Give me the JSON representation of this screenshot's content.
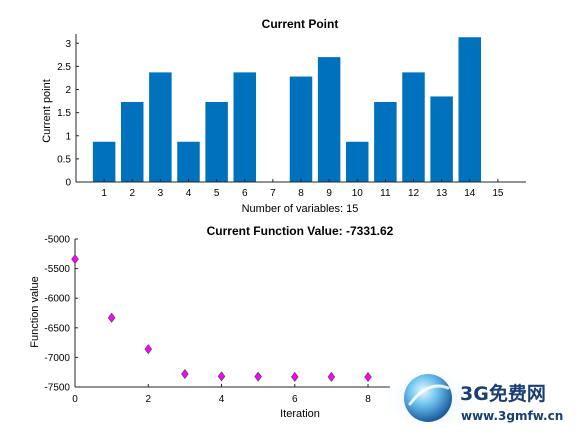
{
  "charts": [
    {
      "chart_data": {
        "type": "bar",
        "title": "Current Point",
        "xlabel": "Number of variables: 15",
        "ylabel": "Current point",
        "categories": [
          "1",
          "2",
          "3",
          "4",
          "5",
          "6",
          "7",
          "8",
          "9",
          "10",
          "11",
          "12",
          "13",
          "14",
          "15"
        ],
        "values": [
          0.87,
          1.73,
          2.37,
          0.87,
          1.73,
          2.37,
          0,
          2.28,
          2.7,
          0.87,
          1.73,
          2.37,
          1.85,
          3.13,
          0
        ],
        "xlim": [
          0,
          16
        ],
        "ylim": [
          0,
          3.2
        ],
        "yticks": [
          0,
          0.5,
          1,
          1.5,
          2,
          2.5,
          3
        ],
        "ytick_labels": [
          "0",
          "0.5",
          "1",
          "1.5",
          "2",
          "2.5",
          "3"
        ],
        "color": "#0072BD",
        "grid": false
      }
    },
    {
      "chart_data": {
        "type": "scatter",
        "title": "Current Function Value: -7331.62",
        "xlabel": "Iteration",
        "ylabel": "Function value",
        "x": [
          0,
          1,
          2,
          3,
          4,
          5,
          6,
          7,
          8
        ],
        "y": [
          -5340,
          -6330,
          -6860,
          -7280,
          -7320,
          -7325,
          -7328,
          -7330,
          -7331.62
        ],
        "xlim": [
          0,
          8.6
        ],
        "ylim": [
          -7500,
          -5000
        ],
        "xticks": [
          0,
          2,
          4,
          6,
          8
        ],
        "xtick_labels": [
          "0",
          "2",
          "4",
          "6",
          "8"
        ],
        "yticks": [
          -7500,
          -7000,
          -6500,
          -6000,
          -5500,
          -5000
        ],
        "ytick_labels": [
          "-7500",
          "-7000",
          "-6500",
          "-6000",
          "-5500",
          "-5000"
        ],
        "marker": "diamond",
        "marker_color": "#FF00FF",
        "grid": false
      }
    }
  ],
  "watermark": {
    "brand": "3G免费网",
    "url": "www.3gmfw.cn"
  }
}
